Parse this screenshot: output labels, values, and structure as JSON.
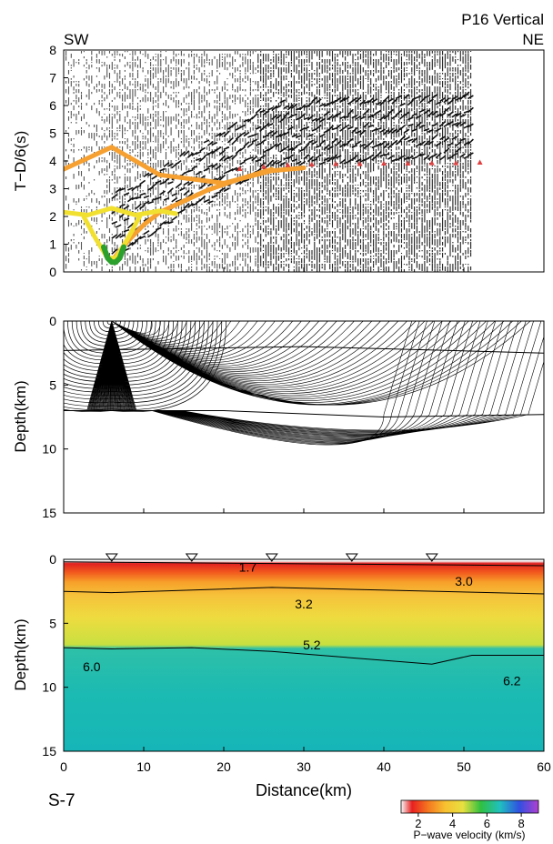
{
  "figure": {
    "station_title": "P16 Vertical",
    "left_label": "SW",
    "right_label": "NE",
    "profile_label": "S-7",
    "x_axis_title": "Distance(km)",
    "x_ticks": [
      "0",
      "10",
      "20",
      "30",
      "40",
      "50",
      "60"
    ]
  },
  "panel1": {
    "y_axis_title": "T−D/6(s)",
    "y_ticks": [
      "0",
      "1",
      "2",
      "3",
      "4",
      "5",
      "6",
      "7",
      "8"
    ]
  },
  "panel2": {
    "y_axis_title": "Depth(km)",
    "y_ticks": [
      "0",
      "5",
      "10",
      "15"
    ]
  },
  "panel3": {
    "y_axis_title": "Depth(km)",
    "y_ticks": [
      "0",
      "5",
      "10",
      "15"
    ],
    "velocity_labels": [
      {
        "text": "1.7",
        "x": 23,
        "depth": 0.6
      },
      {
        "text": "3.0",
        "x": 50,
        "depth": 1.7
      },
      {
        "text": "3.2",
        "x": 30,
        "depth": 3.5
      },
      {
        "text": "5.2",
        "x": 31,
        "depth": 6.7
      },
      {
        "text": "6.0",
        "x": 3.5,
        "depth": 8.4
      },
      {
        "text": "6.2",
        "x": 56,
        "depth": 9.5
      }
    ]
  },
  "colorbar": {
    "title": "P−wave velocity (km/s)",
    "ticks": [
      "2",
      "4",
      "6",
      "8"
    ],
    "min": 1,
    "max": 9
  },
  "colors": {
    "orange_picks": "#f5a030",
    "yellow_picks": "#f2e030",
    "green_picks": "#2ca02c",
    "red_picks": "#e04040",
    "model_deep": "#18b8b0"
  },
  "chart_data": [
    {
      "type": "scatter",
      "panel": "travel-time record section",
      "xlabel": "Distance(km)",
      "ylabel": "T−D/6(s)",
      "xlim": [
        0,
        60
      ],
      "ylim": [
        0,
        8
      ],
      "series": [
        {
          "color": "orange",
          "x": [
            0,
            6,
            12,
            20,
            26,
            30
          ],
          "y": [
            3.7,
            4.5,
            3.5,
            3.2,
            3.65,
            3.75
          ]
        },
        {
          "color": "orange",
          "x": [
            6,
            8,
            10,
            12,
            15,
            18,
            22,
            26
          ],
          "y": [
            0.4,
            1.1,
            1.7,
            2.15,
            2.55,
            2.95,
            3.35,
            3.7
          ]
        },
        {
          "color": "yellow",
          "x": [
            0,
            3,
            6,
            9,
            12,
            14
          ],
          "y": [
            2.15,
            2.05,
            2.3,
            2.05,
            2.2,
            2.1
          ]
        },
        {
          "color": "yellow",
          "x": [
            2.5,
            4,
            5.5,
            6.5,
            8,
            9.5
          ],
          "y": [
            2.0,
            1.2,
            0.5,
            0.5,
            1.2,
            2.0
          ]
        },
        {
          "color": "green",
          "x": [
            5,
            5.5,
            6,
            6.5,
            7,
            7.5
          ],
          "y": [
            0.9,
            0.5,
            0.35,
            0.35,
            0.5,
            0.9
          ]
        },
        {
          "color": "red",
          "x": [
            22,
            25,
            28,
            31,
            34,
            37,
            40,
            43,
            46,
            49,
            52
          ],
          "y": [
            3.72,
            3.8,
            3.86,
            3.88,
            3.9,
            3.9,
            3.92,
            3.92,
            3.93,
            3.93,
            3.95
          ]
        }
      ],
      "data_extent_km": 51
    },
    {
      "type": "line",
      "panel": "ray-tracing diagram",
      "xlabel": "Distance(km)",
      "ylabel": "Depth(km)",
      "xlim": [
        0,
        60
      ],
      "ylim": [
        15,
        0
      ],
      "source_x": 6,
      "interfaces": [
        {
          "x": [
            0,
            60
          ],
          "depth": [
            0,
            0
          ]
        },
        {
          "x": [
            0,
            20,
            30,
            60
          ],
          "depth": [
            2.3,
            2.1,
            2.0,
            2.5
          ]
        },
        {
          "x": [
            0,
            10,
            20,
            40,
            60
          ],
          "depth": [
            7.0,
            7.0,
            7.0,
            7.5,
            7.3
          ]
        }
      ],
      "reflection_bottom": {
        "x": 40,
        "depth": 9.8
      }
    },
    {
      "type": "heatmap",
      "panel": "P-wave velocity model",
      "xlabel": "Distance(km)",
      "ylabel": "Depth(km)",
      "xlim": [
        0,
        60
      ],
      "ylim": [
        15,
        0
      ],
      "stations_x": [
        6,
        16,
        26,
        36,
        46
      ],
      "boundaries": [
        {
          "x": [
            0,
            60
          ],
          "depth": [
            0.2,
            0.5
          ]
        },
        {
          "x": [
            0,
            6,
            26,
            60
          ],
          "depth": [
            2.5,
            2.6,
            2.2,
            2.7
          ]
        },
        {
          "x": [
            0,
            6,
            16,
            26,
            46,
            51,
            60
          ],
          "depth": [
            6.9,
            7.0,
            6.9,
            7.2,
            8.2,
            7.5,
            7.5
          ]
        }
      ],
      "velocity_profile": [
        {
          "depth": 0,
          "v": 1.4
        },
        {
          "depth": 0.8,
          "v": 2.0
        },
        {
          "depth": 1.6,
          "v": 3.0
        },
        {
          "depth": 2.6,
          "v": 3.3
        },
        {
          "depth": 6.9,
          "v": 5.2
        },
        {
          "depth": 7.0,
          "v": 6.0
        },
        {
          "depth": 15,
          "v": 6.2
        }
      ]
    }
  ]
}
